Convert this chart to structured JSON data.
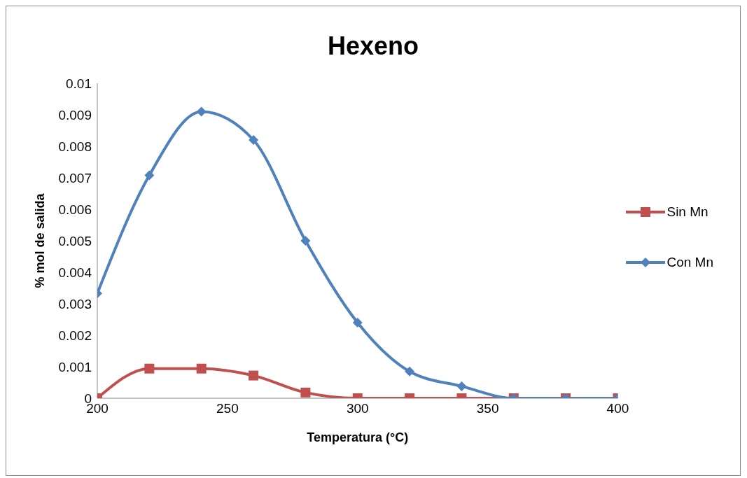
{
  "chart_data": {
    "type": "line",
    "title": "Hexeno",
    "xlabel": "Temperatura (°C)",
    "ylabel": "% mol de salida",
    "x": [
      200,
      220,
      240,
      260,
      280,
      300,
      320,
      340,
      360,
      380,
      400
    ],
    "series": [
      {
        "name": "Sin Mn",
        "color": "#c0504d",
        "marker": "square",
        "values": [
          0,
          0.00094,
          0.00094,
          0.00072,
          0.00018,
          0,
          0,
          0,
          0,
          0,
          0
        ]
      },
      {
        "name": "Con Mn",
        "color": "#4f81bd",
        "marker": "diamond",
        "values": [
          0.00333,
          0.00708,
          0.0091,
          0.0082,
          0.005,
          0.0024,
          0.00085,
          0.00038,
          0,
          0,
          0
        ]
      }
    ],
    "xlim": [
      200,
      400
    ],
    "xticks": [
      200,
      250,
      300,
      350,
      400
    ],
    "ylim": [
      0,
      0.01
    ],
    "yticks": [
      0,
      0.001,
      0.002,
      0.003,
      0.004,
      0.005,
      0.006,
      0.007,
      0.008,
      0.009,
      0.01
    ],
    "grid": false,
    "legend": "right",
    "line_style": "solid"
  }
}
